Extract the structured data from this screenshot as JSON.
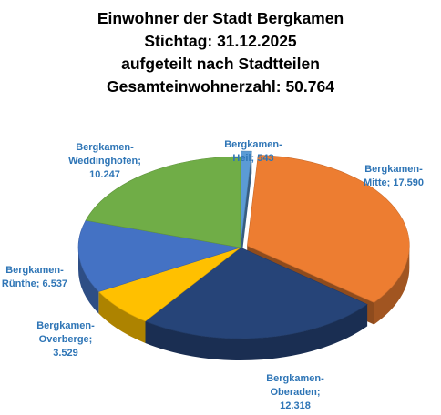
{
  "chart_data": {
    "type": "pie",
    "variant": "3d-exploded",
    "title_lines": [
      "Einwohner der Stadt Bergkamen",
      "Stichtag: 31.12.2025",
      "aufgeteilt nach Stadtteilen",
      "Gesamteinwohnerzahl: 50.764"
    ],
    "slices": [
      {
        "label_lines": [
          "Bergkamen-",
          "Heil; 543"
        ],
        "category": "Bergkamen-Heil",
        "value": 543,
        "value_text": "543",
        "color": "#5B9BD5"
      },
      {
        "label_lines": [
          "Bergkamen-",
          "Mitte; 17.590"
        ],
        "category": "Bergkamen-Mitte",
        "value": 17590,
        "value_text": "17.590",
        "color": "#ED7D31"
      },
      {
        "label_lines": [
          "Bergkamen-",
          "Oberaden;",
          "12.318"
        ],
        "category": "Bergkamen-Oberaden",
        "value": 12318,
        "value_text": "12.318",
        "color": "#264478"
      },
      {
        "label_lines": [
          "Bergkamen-",
          "Overberge;",
          "3.529"
        ],
        "category": "Bergkamen-Overberge",
        "value": 3529,
        "value_text": "3.529",
        "color": "#FFC000"
      },
      {
        "label_lines": [
          "Bergkamen-",
          "Rünthe; 6.537"
        ],
        "category": "Bergkamen-Rünthe",
        "value": 6537,
        "value_text": "6.537",
        "color": "#4472C4"
      },
      {
        "label_lines": [
          "Bergkamen-",
          "Weddinghofen;",
          "10.247"
        ],
        "category": "Bergkamen-Weddinghofen",
        "value": 10247,
        "value_text": "10.247",
        "color": "#70AD47"
      }
    ],
    "legend": "none",
    "label_color": "#2E75B6"
  }
}
